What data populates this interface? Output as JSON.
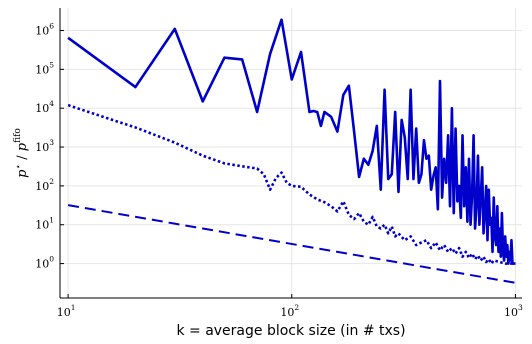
{
  "chart_data": {
    "type": "line",
    "title": "",
    "xlabel": "k = average block size (in # txs)",
    "ylabel": {
      "base": "p",
      "star": "⋆",
      "sep": " / ",
      "base2": "p",
      "sup2": "fifo"
    },
    "xscale": "log",
    "yscale": "log",
    "xlim": [
      9.2,
      1070
    ],
    "ylim": [
      0.13,
      3800000
    ],
    "xticks": [
      {
        "value": 10,
        "base": "10",
        "exp": "1"
      },
      {
        "value": 100,
        "base": "10",
        "exp": "2"
      },
      {
        "value": 1000,
        "base": "10",
        "exp": "3"
      }
    ],
    "yticks": [
      {
        "value": 1,
        "base": "10",
        "exp": "0"
      },
      {
        "value": 10,
        "base": "10",
        "exp": "1"
      },
      {
        "value": 100,
        "base": "10",
        "exp": "2"
      },
      {
        "value": 1000,
        "base": "10",
        "exp": "3"
      },
      {
        "value": 10000,
        "base": "10",
        "exp": "4"
      },
      {
        "value": 100000,
        "base": "10",
        "exp": "5"
      },
      {
        "value": 1000000,
        "base": "10",
        "exp": "6"
      }
    ],
    "grid": true,
    "legend": "none",
    "colors": {
      "series": "#0000cc",
      "grid": "#e6e6e6",
      "axis": "#000000"
    },
    "series": [
      {
        "style": "solid",
        "x": [
          10,
          20,
          30,
          40,
          50,
          60,
          70,
          80,
          90,
          100,
          110,
          120,
          125,
          130,
          135,
          140,
          150,
          160,
          170,
          180,
          190,
          200,
          210,
          220,
          230,
          240,
          250,
          260,
          270,
          280,
          290,
          300,
          310,
          320,
          330,
          340,
          350,
          360,
          370,
          380,
          390,
          400,
          410,
          420,
          430,
          440,
          450,
          460,
          470,
          480,
          490,
          500,
          510,
          520,
          530,
          540,
          550,
          560,
          570,
          580,
          590,
          600,
          610,
          620,
          630,
          640,
          650,
          660,
          670,
          680,
          690,
          700,
          710,
          720,
          730,
          740,
          750,
          760,
          770,
          780,
          790,
          800,
          810,
          820,
          830,
          840,
          850,
          860,
          870,
          880,
          890,
          900,
          910,
          920,
          930,
          940,
          950,
          960,
          970,
          980,
          1000
        ],
        "y": [
          650000,
          35000,
          1100000,
          15000,
          200000,
          180000,
          8000,
          250000,
          1900000,
          55000,
          280000,
          8000,
          8500,
          8000,
          3500,
          8000,
          6000,
          2500,
          22000,
          38000,
          2500,
          170,
          500,
          350,
          800,
          3500,
          80,
          30000,
          150,
          200,
          8000,
          70,
          5000,
          1800,
          150,
          30000,
          150,
          3000,
          120,
          200,
          1500,
          500,
          600,
          80,
          180,
          300,
          25,
          50000,
          50,
          500,
          120,
          2000,
          30,
          10000,
          20,
          3000,
          40,
          100,
          15,
          2000,
          30,
          300,
          12,
          500,
          10,
          60,
          2000,
          8,
          30,
          600,
          10,
          50,
          300,
          6,
          20,
          100,
          4,
          80,
          10,
          15,
          2,
          50,
          5,
          3,
          30,
          2,
          8,
          1.5,
          20,
          2,
          1.2,
          5,
          1.5,
          3,
          1,
          2,
          1.2,
          4,
          1,
          1,
          1
        ]
      },
      {
        "style": "dotted",
        "x": [
          10,
          15,
          20,
          30,
          40,
          50,
          60,
          70,
          75,
          80,
          85,
          90,
          95,
          100,
          110,
          120,
          130,
          140,
          150,
          160,
          170,
          180,
          190,
          200,
          210,
          220,
          230,
          240,
          250,
          260,
          270,
          280,
          290,
          300,
          320,
          340,
          360,
          380,
          400,
          420,
          440,
          460,
          480,
          500,
          520,
          540,
          560,
          580,
          600,
          620,
          640,
          660,
          680,
          700,
          720,
          740,
          760,
          780,
          800,
          850,
          900,
          950,
          1000
        ],
        "y": [
          12000,
          5500,
          3200,
          1300,
          600,
          380,
          320,
          280,
          200,
          80,
          160,
          220,
          120,
          100,
          95,
          60,
          45,
          38,
          30,
          22,
          40,
          18,
          14,
          20,
          12,
          10,
          16,
          9,
          8,
          10,
          6,
          9,
          5,
          6,
          4,
          5,
          3,
          3.5,
          4,
          2.5,
          3.5,
          2.2,
          3,
          2,
          2.5,
          1.8,
          2.5,
          1.5,
          2,
          1.4,
          1.8,
          1.3,
          1.6,
          1.2,
          1.5,
          1.1,
          1.3,
          1.0,
          1.2,
          1.1,
          1.0,
          1.0,
          1.0
        ]
      },
      {
        "style": "dashed",
        "x": [
          10,
          1000
        ],
        "y": [
          32,
          0.32
        ]
      }
    ]
  }
}
